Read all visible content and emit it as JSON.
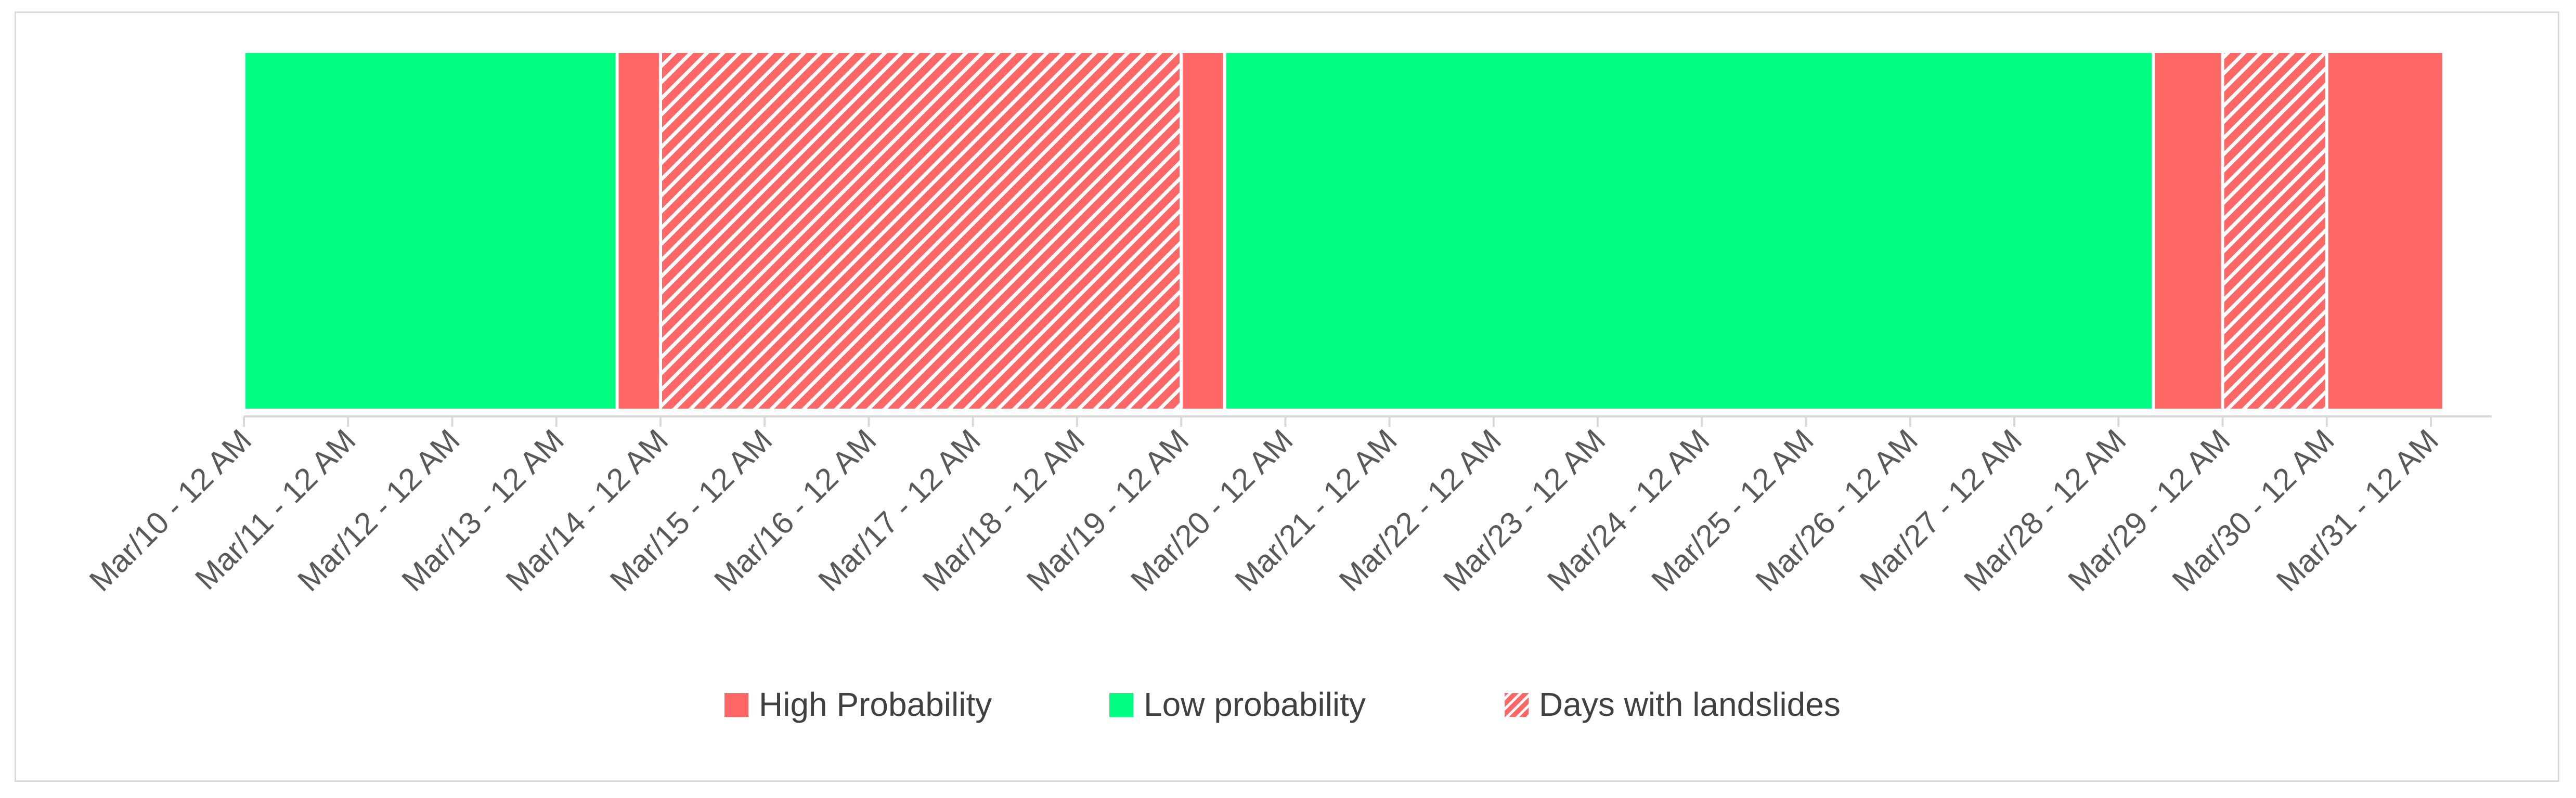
{
  "chart_data": {
    "type": "bar",
    "orientation": "horizontal-timeline",
    "x_unit": "days",
    "ticks": [
      "Mar/10 - 12 AM",
      "Mar/11 - 12 AM",
      "Mar/12 - 12 AM",
      "Mar/13 - 12 AM",
      "Mar/14 - 12 AM",
      "Mar/15 - 12 AM",
      "Mar/16 - 12 AM",
      "Mar/17 - 12 AM",
      "Mar/18 - 12 AM",
      "Mar/19 - 12 AM",
      "Mar/20 - 12 AM",
      "Mar/21 - 12 AM",
      "Mar/22 - 12 AM",
      "Mar/23 - 12 AM",
      "Mar/24 - 12 AM",
      "Mar/25 - 12 AM",
      "Mar/26 - 12 AM",
      "Mar/27 - 12 AM",
      "Mar/28 - 12 AM",
      "Mar/29 - 12 AM",
      "Mar/30 - 12 AM",
      "Mar/31 - 12 AM"
    ],
    "segments": [
      {
        "series": "Low probability",
        "start": "Mar/10 00:00",
        "end": "Mar/13 14:00"
      },
      {
        "series": "High Probability",
        "start": "Mar/13 14:00",
        "end": "Mar/14 00:00"
      },
      {
        "series": "Days with landslides",
        "start": "Mar/14 00:00",
        "end": "Mar/19 00:00"
      },
      {
        "series": "High Probability",
        "start": "Mar/19 00:00",
        "end": "Mar/19 10:00"
      },
      {
        "series": "Low probability",
        "start": "Mar/19 10:00",
        "end": "Mar/28 08:00"
      },
      {
        "series": "High Probability",
        "start": "Mar/28 08:00",
        "end": "Mar/29 00:00"
      },
      {
        "series": "Days with landslides",
        "start": "Mar/29 00:00",
        "end": "Mar/30 00:00"
      },
      {
        "series": "High Probability",
        "start": "Mar/30 00:00",
        "end": "Mar/31 03:00"
      }
    ],
    "legend": {
      "position": "bottom",
      "entries": [
        {
          "name": "High Probability",
          "color": "#ff6666",
          "pattern": "solid"
        },
        {
          "name": "Low probability",
          "color": "#00ff80",
          "pattern": "solid"
        },
        {
          "name": "Days with landslides",
          "color": "#ff6666",
          "pattern": "diagonal-hatch"
        }
      ]
    },
    "grid": false
  }
}
